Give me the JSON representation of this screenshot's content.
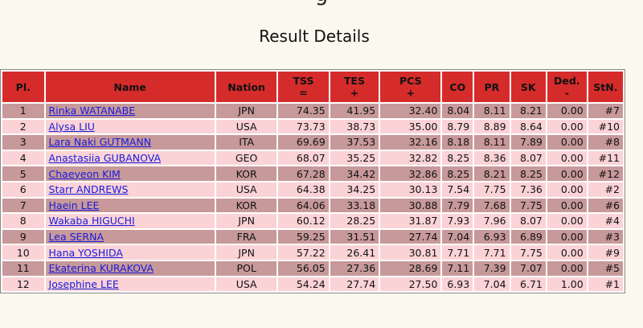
{
  "clipped_heading": "g",
  "page_title": "Result Details",
  "columns": [
    {
      "key": "pl",
      "label": "Pl.",
      "sub": ""
    },
    {
      "key": "name",
      "label": "Name",
      "sub": ""
    },
    {
      "key": "nation",
      "label": "Nation",
      "sub": ""
    },
    {
      "key": "tss",
      "label": "TSS",
      "sub": "="
    },
    {
      "key": "tes",
      "label": "TES",
      "sub": "+"
    },
    {
      "key": "pcs",
      "label": "PCS",
      "sub": "+"
    },
    {
      "key": "co",
      "label": "CO",
      "sub": ""
    },
    {
      "key": "pr",
      "label": "PR",
      "sub": ""
    },
    {
      "key": "sk",
      "label": "SK",
      "sub": ""
    },
    {
      "key": "ded",
      "label": "Ded.",
      "sub": "-"
    },
    {
      "key": "stn",
      "label": "StN.",
      "sub": ""
    }
  ],
  "rows": [
    {
      "pl": "1",
      "name": "Rinka WATANABE",
      "nation": "JPN",
      "tss": "74.35",
      "tes": "41.95",
      "pcs": "32.40",
      "co": "8.04",
      "pr": "8.11",
      "sk": "8.21",
      "ded": "0.00",
      "stn": "#7"
    },
    {
      "pl": "2",
      "name": "Alysa LIU",
      "nation": "USA",
      "tss": "73.73",
      "tes": "38.73",
      "pcs": "35.00",
      "co": "8.79",
      "pr": "8.89",
      "sk": "8.64",
      "ded": "0.00",
      "stn": "#10"
    },
    {
      "pl": "3",
      "name": "Lara Naki GUTMANN",
      "nation": "ITA",
      "tss": "69.69",
      "tes": "37.53",
      "pcs": "32.16",
      "co": "8.18",
      "pr": "8.11",
      "sk": "7.89",
      "ded": "0.00",
      "stn": "#8"
    },
    {
      "pl": "4",
      "name": "Anastasiia GUBANOVA",
      "nation": "GEO",
      "tss": "68.07",
      "tes": "35.25",
      "pcs": "32.82",
      "co": "8.25",
      "pr": "8.36",
      "sk": "8.07",
      "ded": "0.00",
      "stn": "#11"
    },
    {
      "pl": "5",
      "name": "Chaeyeon KIM",
      "nation": "KOR",
      "tss": "67.28",
      "tes": "34.42",
      "pcs": "32.86",
      "co": "8.25",
      "pr": "8.21",
      "sk": "8.25",
      "ded": "0.00",
      "stn": "#12"
    },
    {
      "pl": "6",
      "name": "Starr ANDREWS",
      "nation": "USA",
      "tss": "64.38",
      "tes": "34.25",
      "pcs": "30.13",
      "co": "7.54",
      "pr": "7.75",
      "sk": "7.36",
      "ded": "0.00",
      "stn": "#2"
    },
    {
      "pl": "7",
      "name": "Haein LEE",
      "nation": "KOR",
      "tss": "64.06",
      "tes": "33.18",
      "pcs": "30.88",
      "co": "7.79",
      "pr": "7.68",
      "sk": "7.75",
      "ded": "0.00",
      "stn": "#6"
    },
    {
      "pl": "8",
      "name": "Wakaba HIGUCHI",
      "nation": "JPN",
      "tss": "60.12",
      "tes": "28.25",
      "pcs": "31.87",
      "co": "7.93",
      "pr": "7.96",
      "sk": "8.07",
      "ded": "0.00",
      "stn": "#4"
    },
    {
      "pl": "9",
      "name": "Lea SERNA",
      "nation": "FRA",
      "tss": "59.25",
      "tes": "31.51",
      "pcs": "27.74",
      "co": "7.04",
      "pr": "6.93",
      "sk": "6.89",
      "ded": "0.00",
      "stn": "#3"
    },
    {
      "pl": "10",
      "name": "Hana YOSHIDA",
      "nation": "JPN",
      "tss": "57.22",
      "tes": "26.41",
      "pcs": "30.81",
      "co": "7.71",
      "pr": "7.71",
      "sk": "7.75",
      "ded": "0.00",
      "stn": "#9"
    },
    {
      "pl": "11",
      "name": "Ekaterina KURAKOVA",
      "nation": "POL",
      "tss": "56.05",
      "tes": "27.36",
      "pcs": "28.69",
      "co": "7.11",
      "pr": "7.39",
      "sk": "7.07",
      "ded": "0.00",
      "stn": "#5"
    },
    {
      "pl": "12",
      "name": "Josephine LEE",
      "nation": "USA",
      "tss": "54.24",
      "tes": "27.74",
      "pcs": "27.50",
      "co": "6.93",
      "pr": "7.04",
      "sk": "6.71",
      "ded": "1.00",
      "stn": "#1"
    }
  ],
  "colors": {
    "header_bg": "#d62b2b",
    "row_odd_bg": "#c7999a",
    "row_even_bg": "#fbd3d6",
    "link": "#1a1adc"
  }
}
